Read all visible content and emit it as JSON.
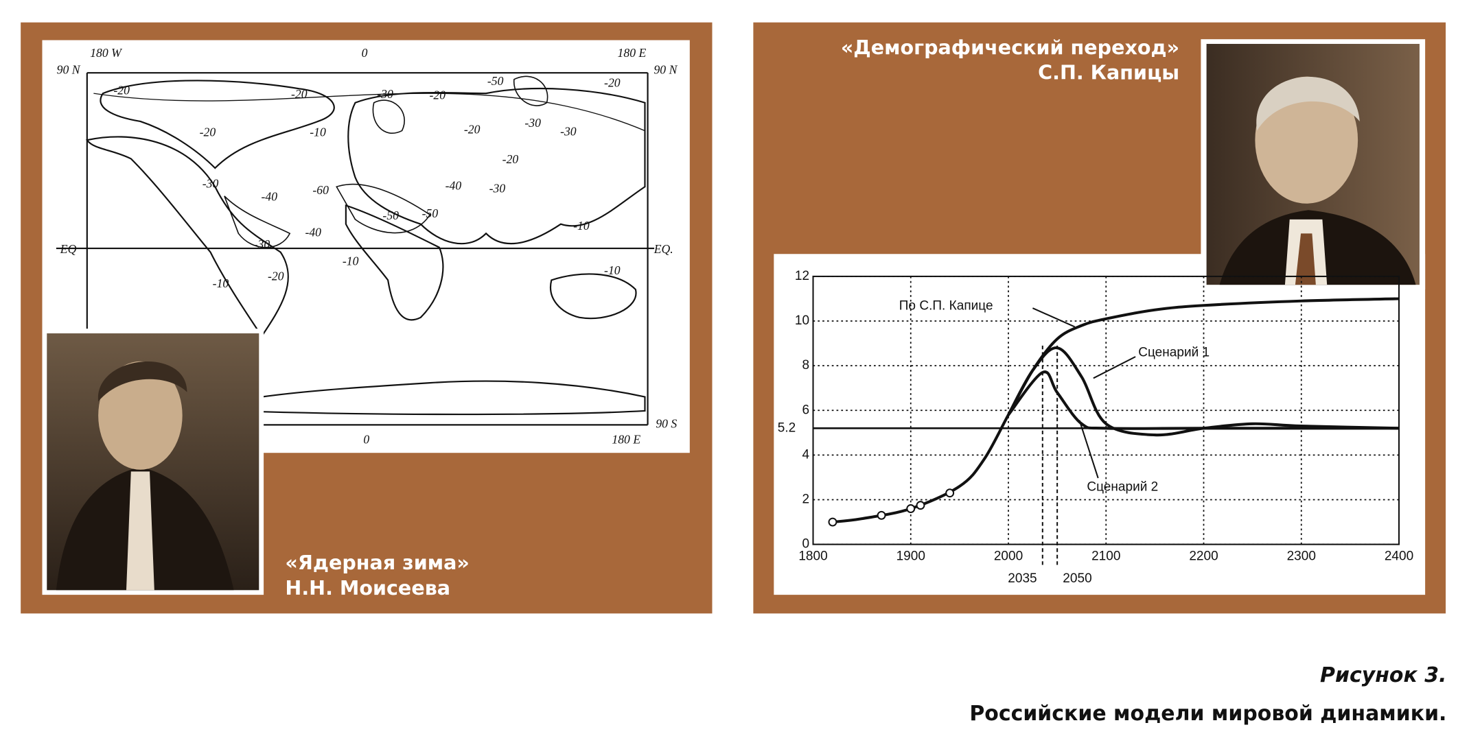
{
  "left_panel": {
    "caption_title": "«Ядерная зима»",
    "caption_author": "Н.Н. Моисеева",
    "map": {
      "top_labels": [
        "180 W",
        "0",
        "180 E"
      ],
      "left_labels": [
        "90 N",
        "EQ"
      ],
      "right_labels": [
        "90 N",
        "EQ.",
        "90 S"
      ],
      "bottom_labels": [
        "0",
        "180 E"
      ],
      "contour_labels": [
        "-20",
        "-20",
        "-20",
        "-10",
        "-30",
        "-20",
        "-50",
        "-20",
        "-30",
        "-30",
        "-20",
        "-20",
        "-30",
        "-40",
        "-60",
        "-40",
        "-30",
        "-50",
        "-50",
        "-40",
        "-10",
        "-10",
        "-20",
        "-10",
        "-10",
        "-30"
      ]
    }
  },
  "right_panel": {
    "caption_title": "«Демографический переход»",
    "caption_author": "С.П. Капицы"
  },
  "chart_data": {
    "type": "line",
    "xlim": [
      1800,
      2400
    ],
    "xticks": [
      1800,
      1900,
      2000,
      2100,
      2200,
      2300,
      2400
    ],
    "ylim": [
      0,
      12
    ],
    "yticks": [
      0,
      2,
      4,
      6,
      8,
      10,
      12
    ],
    "grid": true,
    "hline": 5.2,
    "markers_x": [
      2035,
      2050
    ],
    "series": [
      {
        "name": "По С.П. Капице",
        "color": "#111111",
        "x": [
          1820,
          1850,
          1900,
          1950,
          1975,
          2000,
          2025,
          2050,
          2075,
          2100,
          2150,
          2200,
          2300,
          2400
        ],
        "values": [
          1.0,
          1.15,
          1.6,
          2.6,
          3.8,
          5.8,
          7.8,
          9.2,
          9.8,
          10.1,
          10.5,
          10.7,
          10.9,
          11.0
        ]
      },
      {
        "name": "Сценарий 1",
        "color": "#111111",
        "x": [
          2000,
          2025,
          2050,
          2075,
          2100,
          2150,
          2200,
          2250,
          2300,
          2400
        ],
        "values": [
          5.8,
          7.8,
          8.8,
          7.5,
          5.4,
          4.9,
          5.2,
          5.4,
          5.3,
          5.2
        ]
      },
      {
        "name": "Сценарий 2",
        "color": "#111111",
        "x": [
          2000,
          2035,
          2050,
          2075,
          2100,
          2200,
          2400
        ],
        "values": [
          5.8,
          7.7,
          6.8,
          5.4,
          5.2,
          5.2,
          5.2
        ]
      },
      {
        "marker": "circle",
        "color": "#111111",
        "x": [
          1820,
          1870,
          1900,
          1910,
          1940
        ],
        "values": [
          1.0,
          1.3,
          1.6,
          1.75,
          2.3
        ]
      }
    ]
  },
  "figure_caption": {
    "number": "Рисунок 3.",
    "title": "Российские модели мировой динамики."
  }
}
